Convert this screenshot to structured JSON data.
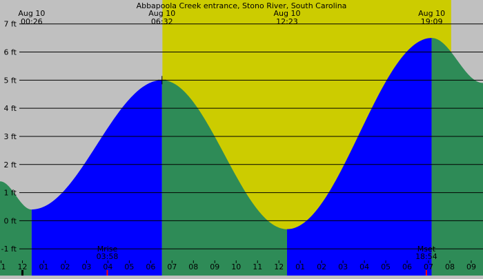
{
  "chart_data": {
    "type": "area",
    "title": "Abbapoola Creek entrance, Stono River, South Carolina",
    "ylabel": "",
    "xlabel": "",
    "ylim": [
      -1.95,
      7.85
    ],
    "xlim_hours": [
      -1.05,
      21.55
    ],
    "y_ticks": [
      {
        "v": 7,
        "label": "7 ft"
      },
      {
        "v": 6,
        "label": "6 ft"
      },
      {
        "v": 5,
        "label": "5 ft"
      },
      {
        "v": 4,
        "label": "4 ft"
      },
      {
        "v": 3,
        "label": "3 ft"
      },
      {
        "v": 2,
        "label": "2 ft"
      },
      {
        "v": 1,
        "label": "1 ft"
      },
      {
        "v": 0,
        "label": "0 ft"
      },
      {
        "v": -1,
        "label": "-1 ft"
      }
    ],
    "x_ticks": [
      {
        "h": -1,
        "label": "11"
      },
      {
        "h": 0,
        "label": "12"
      },
      {
        "h": 1,
        "label": "01"
      },
      {
        "h": 2,
        "label": "02"
      },
      {
        "h": 3,
        "label": "03"
      },
      {
        "h": 4,
        "label": "04"
      },
      {
        "h": 5,
        "label": "05"
      },
      {
        "h": 6,
        "label": "06"
      },
      {
        "h": 7,
        "label": "07"
      },
      {
        "h": 8,
        "label": "08"
      },
      {
        "h": 9,
        "label": "09"
      },
      {
        "h": 10,
        "label": "10"
      },
      {
        "h": 11,
        "label": "11"
      },
      {
        "h": 12,
        "label": "12"
      },
      {
        "h": 13,
        "label": "01"
      },
      {
        "h": 14,
        "label": "02"
      },
      {
        "h": 15,
        "label": "03"
      },
      {
        "h": 16,
        "label": "04"
      },
      {
        "h": 17,
        "label": "05"
      },
      {
        "h": 18,
        "label": "06"
      },
      {
        "h": 19,
        "label": "07"
      },
      {
        "h": 20,
        "label": "08"
      },
      {
        "h": 21,
        "label": "09"
      }
    ],
    "tide_events": [
      {
        "day": "Aug 10",
        "time": "00:26",
        "h": 0.43,
        "height": 0.4,
        "kind": "low"
      },
      {
        "day": "Aug 10",
        "time": "06:32",
        "h": 6.53,
        "height": 5.0,
        "kind": "high"
      },
      {
        "day": "Aug 10",
        "time": "12:23",
        "h": 12.38,
        "height": -0.3,
        "kind": "low"
      },
      {
        "day": "Aug 10",
        "time": "19:09",
        "h": 19.15,
        "height": 6.5,
        "kind": "high"
      }
    ],
    "curve_start": {
      "h": -1.05,
      "height": 1.4
    },
    "curve_end": {
      "h": 21.55,
      "height": 4.9
    },
    "daylight": {
      "start_h": 6.55,
      "end_h": 20.06
    },
    "moon_events": [
      {
        "label": "Mrise",
        "time": "03:58",
        "h": 3.97
      },
      {
        "label": "Mset",
        "time": "18:54",
        "h": 18.9
      }
    ],
    "colors": {
      "night": "#c0c0c0",
      "day": "#cccc00",
      "rising": "#0000ff",
      "falling": "#2e8b57",
      "grid": "#000000",
      "moon_tick": "#ff0000"
    }
  }
}
